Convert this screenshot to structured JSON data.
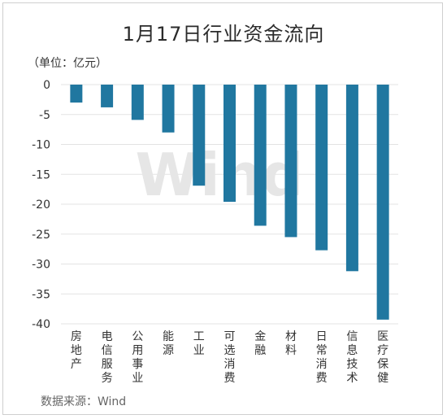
{
  "chart_data": {
    "type": "bar",
    "title": "1月17日行业资金流向",
    "unit_label": "（单位：亿元）",
    "source": "数据来源：Wind",
    "watermark": "Wind",
    "categories": [
      "房地产",
      "电信服务",
      "公用事业",
      "能源",
      "工业",
      "可选消费",
      "金融",
      "材料",
      "日常消费",
      "信息技术",
      "医疗保健"
    ],
    "values": [
      -3.0,
      -3.8,
      -5.9,
      -8.0,
      -16.9,
      -19.6,
      -23.6,
      -25.5,
      -27.7,
      -31.2,
      -39.3
    ],
    "yticks": [
      "0",
      "-5",
      "-10",
      "-15",
      "-20",
      "-25",
      "-30",
      "-35",
      "-40"
    ],
    "ylim": [
      -40,
      0
    ],
    "grid": true,
    "bar_color": "#2077a0"
  }
}
